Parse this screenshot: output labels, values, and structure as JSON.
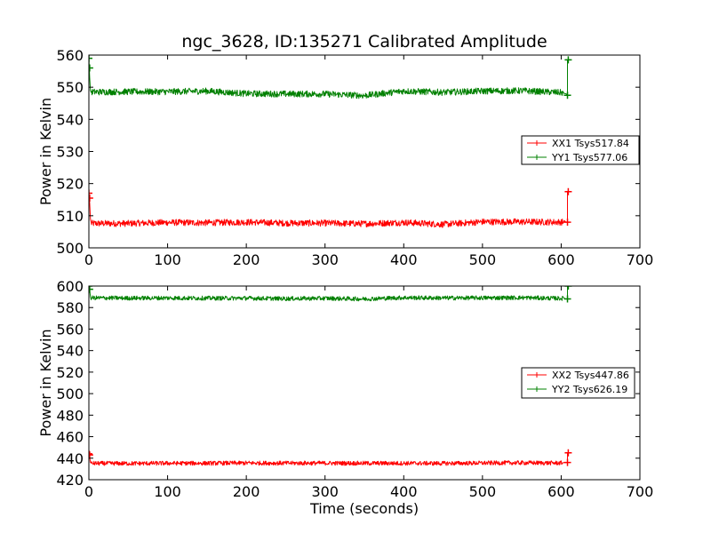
{
  "title": "ngc_3628, ID:135271 Calibrated Amplitude",
  "chart_data": [
    {
      "type": "line",
      "title": "ngc_3628, ID:135271 Calibrated Amplitude",
      "xlabel": "",
      "ylabel": "Power in Kelvin",
      "xlim": [
        0,
        700
      ],
      "ylim": [
        500,
        560
      ],
      "xticks": [
        0,
        100,
        200,
        300,
        400,
        500,
        600,
        700
      ],
      "yticks": [
        500,
        510,
        520,
        530,
        540,
        550,
        560
      ],
      "grid": false,
      "legend": "center-right",
      "series": [
        {
          "name": "XX1 Tsys517.84",
          "color": "#ff0000",
          "start": [
            [
              0,
              517.0
            ],
            [
              1,
              514.0
            ],
            [
              2,
              509.0
            ]
          ],
          "end": [
            [
              604,
              508.5
            ],
            [
              606,
              508.0
            ],
            [
              608,
              508.0
            ],
            [
              608,
              517.5
            ],
            [
              609,
              517.5
            ]
          ],
          "base": [
            [
              3,
              507.6
            ],
            [
              50,
              507.6
            ],
            [
              100,
              507.9
            ],
            [
              150,
              507.8
            ],
            [
              200,
              508.0
            ],
            [
              250,
              507.7
            ],
            [
              300,
              507.7
            ],
            [
              350,
              507.5
            ],
            [
              400,
              507.9
            ],
            [
              450,
              507.3
            ],
            [
              500,
              508.1
            ],
            [
              550,
              508.1
            ],
            [
              602,
              508.0
            ]
          ],
          "noise": 1.0,
          "marker_points": [
            [
              0,
              517.0
            ],
            [
              1,
              515.5
            ],
            [
              608,
              508.0
            ],
            [
              609,
              517.5
            ]
          ]
        },
        {
          "name": "YY1 Tsys577.06",
          "color": "#008000",
          "start": [
            [
              0,
              559.0
            ],
            [
              1,
              553.0
            ],
            [
              2,
              549.0
            ]
          ],
          "end": [
            [
              604,
              548.0
            ],
            [
              606,
              548.0
            ],
            [
              608,
              547.5
            ],
            [
              608,
              558.5
            ],
            [
              609,
              558.5
            ]
          ],
          "base": [
            [
              3,
              548.5
            ],
            [
              50,
              548.6
            ],
            [
              100,
              548.6
            ],
            [
              150,
              548.8
            ],
            [
              200,
              548.0
            ],
            [
              250,
              547.9
            ],
            [
              300,
              547.9
            ],
            [
              350,
              547.4
            ],
            [
              400,
              548.8
            ],
            [
              450,
              548.4
            ],
            [
              500,
              548.8
            ],
            [
              550,
              548.9
            ],
            [
              602,
              548.3
            ]
          ],
          "noise": 1.0,
          "marker_points": [
            [
              0,
              559.0
            ],
            [
              1,
              556.0
            ],
            [
              608,
              547.5
            ],
            [
              609,
              558.5
            ]
          ]
        }
      ]
    },
    {
      "type": "line",
      "title": "",
      "xlabel": "Time (seconds)",
      "ylabel": "Power in Kelvin",
      "xlim": [
        0,
        700
      ],
      "ylim": [
        420,
        600
      ],
      "xticks": [
        0,
        100,
        200,
        300,
        400,
        500,
        600,
        700
      ],
      "yticks": [
        420,
        440,
        460,
        480,
        500,
        520,
        540,
        560,
        580,
        600
      ],
      "grid": false,
      "legend": "center-right",
      "series": [
        {
          "name": "XX2 Tsys447.86",
          "color": "#ff0000",
          "start": [
            [
              0,
              444.0
            ],
            [
              1,
              441.0
            ],
            [
              2,
              436.0
            ]
          ],
          "end": [
            [
              604,
              436.0
            ],
            [
              606,
              436.0
            ],
            [
              608,
              436.0
            ],
            [
              608,
              445.0
            ],
            [
              609,
              445.0
            ]
          ],
          "base": [
            [
              3,
              435.2
            ],
            [
              50,
              435.1
            ],
            [
              100,
              435.3
            ],
            [
              150,
              435.3
            ],
            [
              200,
              435.5
            ],
            [
              250,
              435.4
            ],
            [
              300,
              435.4
            ],
            [
              350,
              435.3
            ],
            [
              400,
              435.3
            ],
            [
              450,
              435.2
            ],
            [
              500,
              435.5
            ],
            [
              550,
              435.7
            ],
            [
              602,
              435.5
            ]
          ],
          "noise": 2.0,
          "marker_points": [
            [
              0,
              444.0
            ],
            [
              1,
              443.0
            ],
            [
              608,
              436.0
            ],
            [
              609,
              445.0
            ]
          ]
        },
        {
          "name": "YY2 Tsys626.19",
          "color": "#008000",
          "start": [
            [
              0,
              600.0
            ],
            [
              1,
              596.0
            ],
            [
              2,
              590.0
            ]
          ],
          "end": [
            [
              604,
              588.5
            ],
            [
              606,
              588.0
            ],
            [
              608,
              588.0
            ],
            [
              608,
              600.0
            ],
            [
              609,
              600.0
            ]
          ],
          "base": [
            [
              3,
              589.0
            ],
            [
              50,
              588.8
            ],
            [
              100,
              588.9
            ],
            [
              150,
              588.7
            ],
            [
              200,
              588.7
            ],
            [
              250,
              588.3
            ],
            [
              300,
              588.6
            ],
            [
              350,
              588.0
            ],
            [
              400,
              589.2
            ],
            [
              450,
              588.9
            ],
            [
              500,
              589.0
            ],
            [
              550,
              589.2
            ],
            [
              602,
              588.5
            ]
          ],
          "noise": 2.0,
          "marker_points": [
            [
              0,
              600.0
            ],
            [
              1,
              597.0
            ],
            [
              608,
              588.0
            ],
            [
              609,
              600.0
            ]
          ]
        }
      ]
    }
  ]
}
